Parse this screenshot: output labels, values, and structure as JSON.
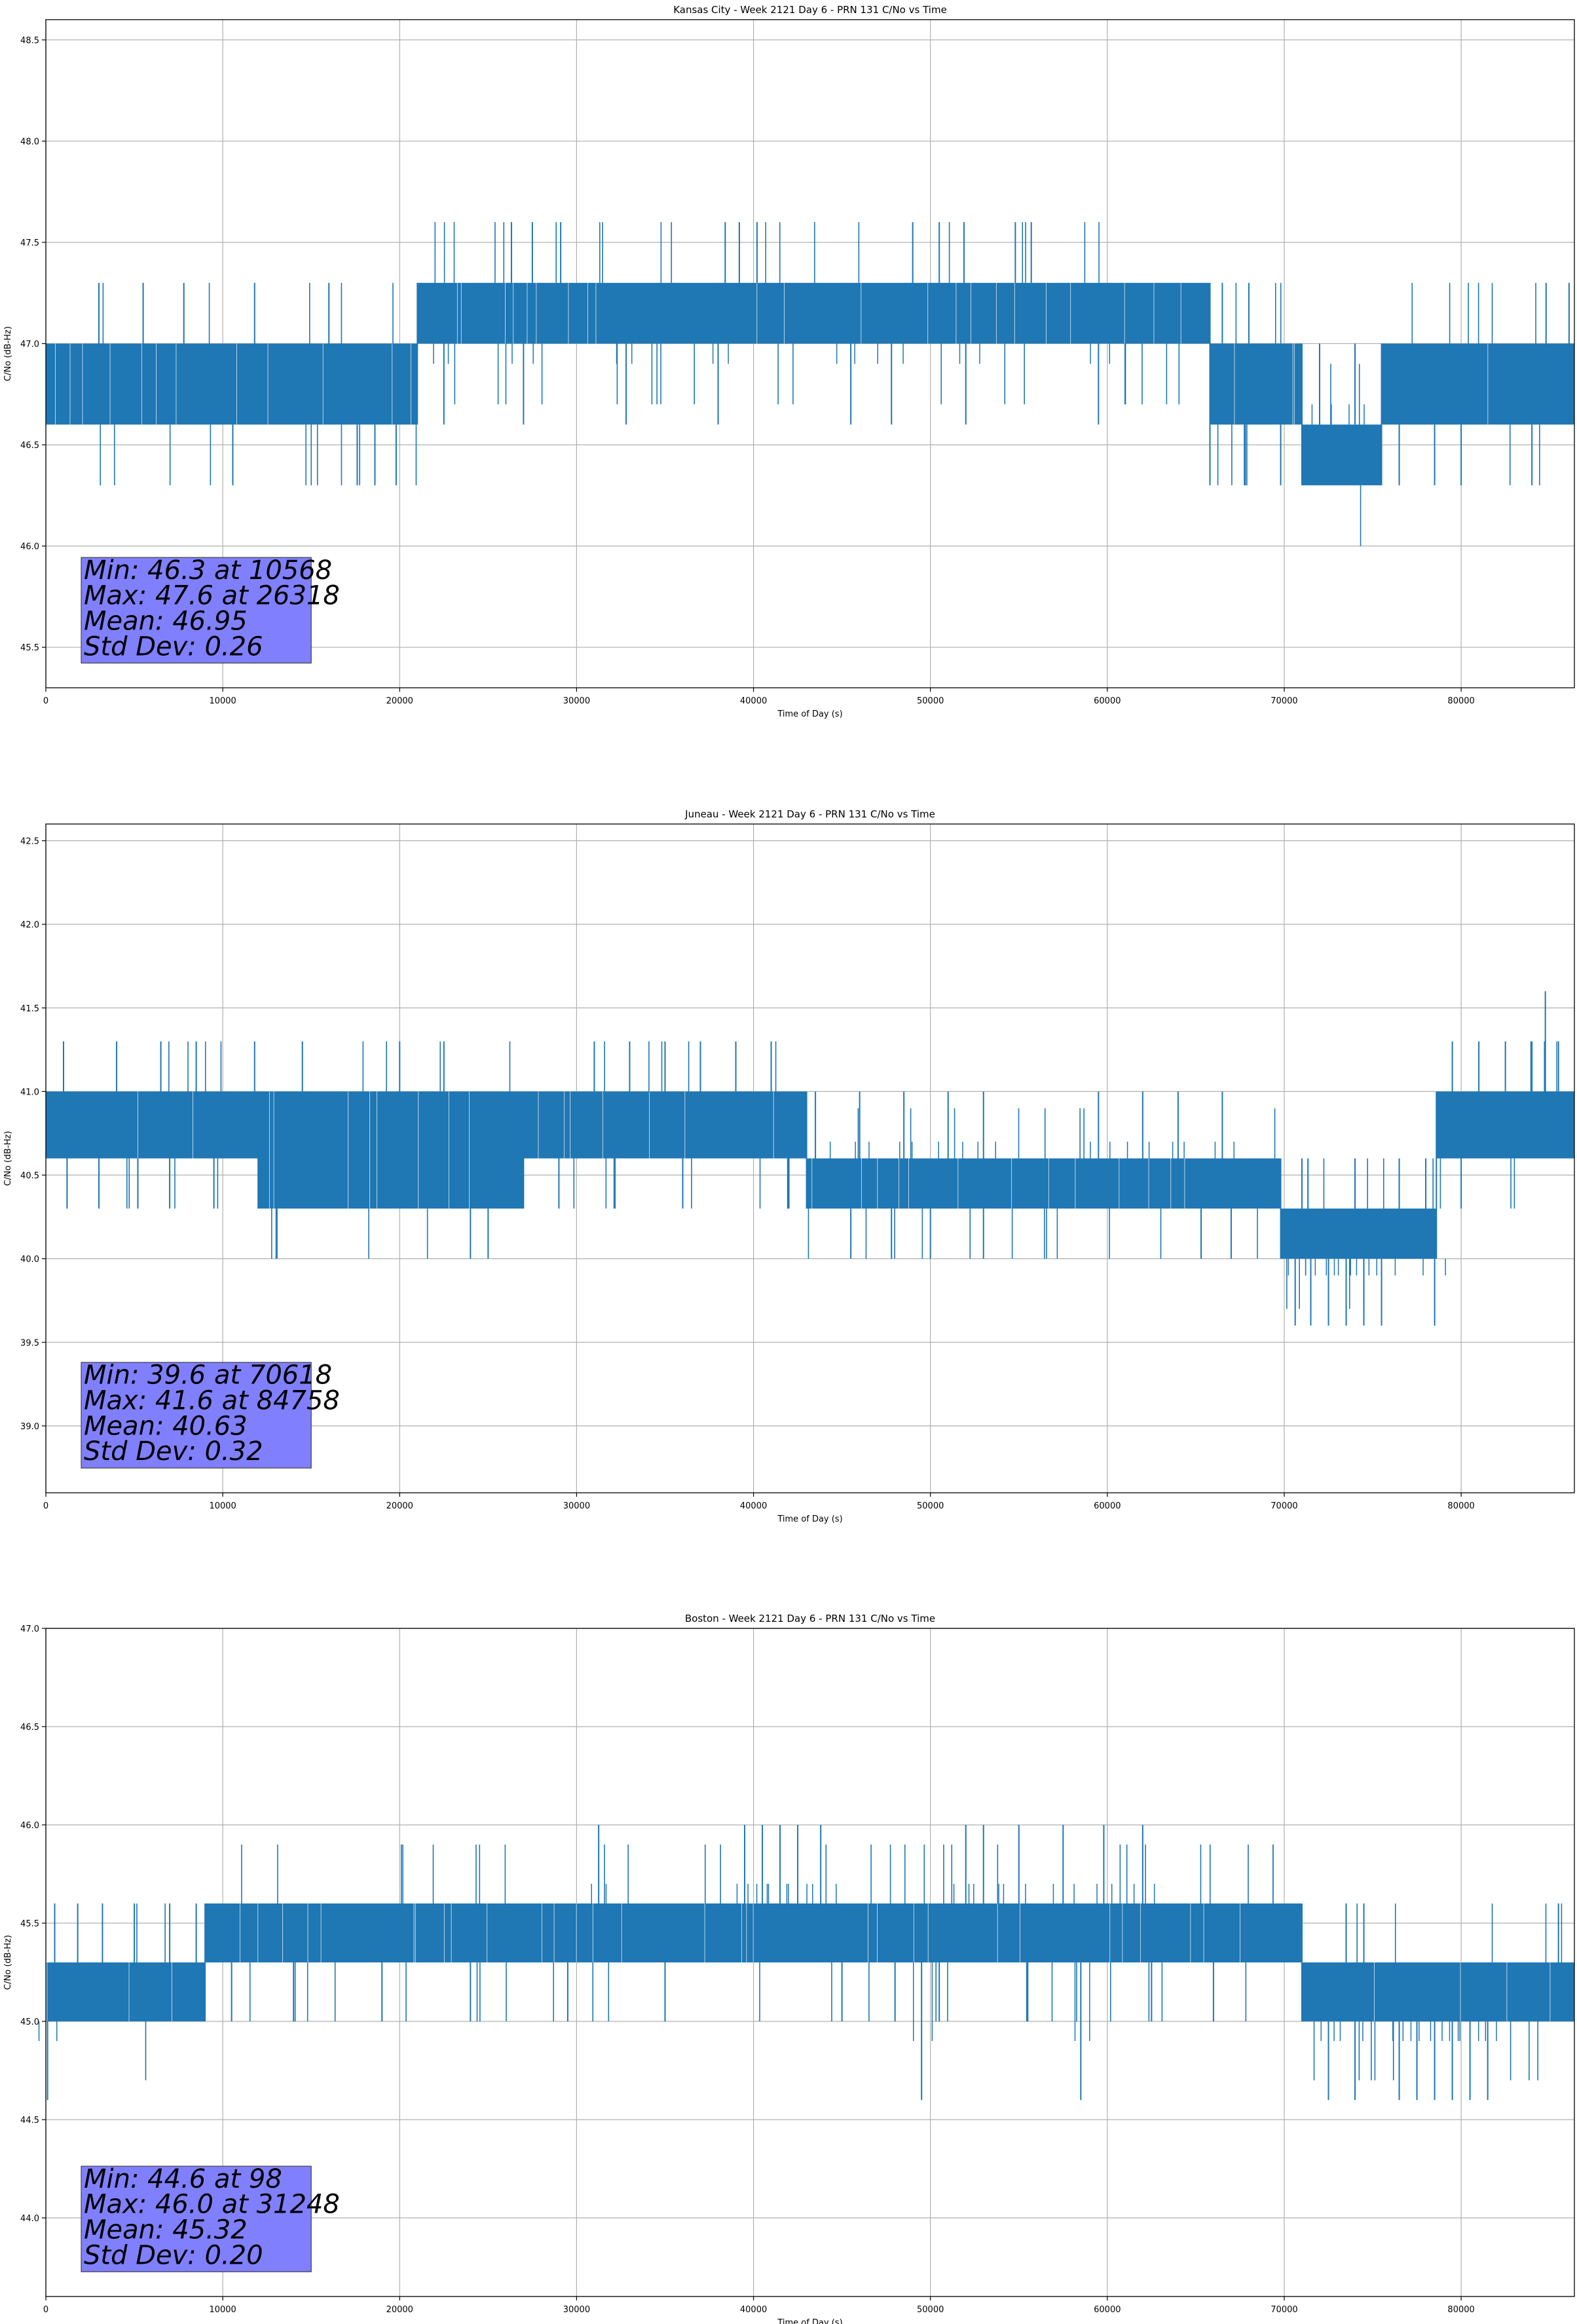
{
  "colors": {
    "series": "#1f77b4",
    "grid": "#b0b0b0",
    "stats_box": "#8080ff",
    "axis": "#000000"
  },
  "chart_data": [
    {
      "type": "line",
      "title": "Kansas City - Week 2121 Day 6 - PRN 131 C/No vs Time",
      "xlabel": "Time of Day (s)",
      "ylabel": "C/No (dB-Hz)",
      "xlim": [
        0,
        86400
      ],
      "ylim": [
        45.3,
        48.6
      ],
      "xticks": [
        0,
        10000,
        20000,
        30000,
        40000,
        50000,
        60000,
        70000,
        80000
      ],
      "yticks": [
        45.5,
        46.0,
        46.5,
        47.0,
        47.5,
        48.0,
        48.5
      ],
      "grid": true,
      "stats": [
        "Min: 46.3 at 10568",
        "Max: 47.6 at 26318",
        "Mean: 46.95",
        "Std Dev: 0.26"
      ],
      "series_segments": [
        {
          "x": [
            0,
            21000
          ],
          "levels": [
            46.6,
            47.0
          ],
          "outliers": [
            [
              10568,
              46.3
            ],
            [
              17600,
              46.3
            ],
            [
              18600,
              46.3
            ],
            [
              19800,
              46.3
            ],
            [
              3000,
              47.3
            ],
            [
              5500,
              47.3
            ],
            [
              7800,
              47.3
            ],
            [
              11800,
              47.3
            ],
            [
              16000,
              47.3
            ]
          ]
        },
        {
          "x": [
            21000,
            65800
          ],
          "levels": [
            47.0,
            47.3
          ],
          "outliers": [
            [
              26318,
              47.6
            ],
            [
              27500,
              47.6
            ],
            [
              29100,
              47.6
            ],
            [
              38400,
              47.6
            ],
            [
              39200,
              47.6
            ],
            [
              40200,
              47.6
            ],
            [
              49000,
              47.6
            ],
            [
              50500,
              47.6
            ],
            [
              51900,
              47.6
            ],
            [
              54800,
              47.6
            ],
            [
              55700,
              47.6
            ],
            [
              22500,
              46.6
            ],
            [
              27000,
              46.6
            ],
            [
              32800,
              46.6
            ],
            [
              38000,
              46.6
            ],
            [
              45500,
              46.6
            ],
            [
              47800,
              46.6
            ],
            [
              52000,
              46.6
            ],
            [
              59500,
              46.6
            ]
          ]
        },
        {
          "x": [
            65800,
            71000
          ],
          "levels": [
            46.6,
            47.0
          ],
          "outliers": [
            [
              65800,
              46.3
            ],
            [
              67800,
              46.3
            ],
            [
              69800,
              46.3
            ],
            [
              66500,
              47.3
            ],
            [
              68000,
              47.3
            ]
          ]
        },
        {
          "x": [
            71000,
            75500
          ],
          "levels": [
            46.3,
            46.6
          ],
          "outliers": [
            [
              72000,
              47.0
            ],
            [
              74000,
              47.0
            ]
          ]
        },
        {
          "x": [
            75500,
            86400
          ],
          "levels": [
            46.6,
            47.0
          ],
          "outliers": [
            [
              76500,
              46.3
            ],
            [
              78500,
              46.3
            ],
            [
              80000,
              46.3
            ],
            [
              84000,
              46.3
            ],
            [
              84800,
              47.3
            ],
            [
              86100,
              47.3
            ]
          ]
        }
      ]
    },
    {
      "type": "line",
      "title": "Juneau - Week 2121 Day 6 - PRN 131 C/No vs Time",
      "xlabel": "Time of Day (s)",
      "ylabel": "C/No (dB-Hz)",
      "xlim": [
        0,
        86400
      ],
      "ylim": [
        38.6,
        42.6
      ],
      "xticks": [
        0,
        10000,
        20000,
        30000,
        40000,
        50000,
        60000,
        70000,
        80000
      ],
      "yticks": [
        39.0,
        39.5,
        40.0,
        40.5,
        41.0,
        41.5,
        42.0,
        42.5
      ],
      "grid": true,
      "stats": [
        "Min: 39.6 at 70618",
        "Max: 41.6 at 84758",
        "Mean: 40.63",
        "Std Dev: 0.32"
      ],
      "series_segments": [
        {
          "x": [
            0,
            12000
          ],
          "levels": [
            40.6,
            41.0
          ],
          "outliers": [
            [
              1200,
              40.3
            ],
            [
              3000,
              40.3
            ],
            [
              5200,
              40.3
            ],
            [
              7000,
              40.3
            ],
            [
              9500,
              40.3
            ],
            [
              1000,
              41.3
            ],
            [
              4000,
              41.3
            ],
            [
              6500,
              41.3
            ],
            [
              8500,
              41.3
            ],
            [
              11800,
              41.3
            ]
          ]
        },
        {
          "x": [
            12000,
            27000
          ],
          "levels": [
            40.3,
            41.0
          ],
          "outliers": [
            [
              24000,
              40.0
            ],
            [
              25000,
              40.0
            ],
            [
              14500,
              41.3
            ],
            [
              20000,
              41.3
            ],
            [
              22500,
              41.3
            ]
          ]
        },
        {
          "x": [
            27000,
            43000
          ],
          "levels": [
            40.6,
            41.0
          ],
          "outliers": [
            [
              31000,
              41.3
            ],
            [
              33000,
              41.3
            ],
            [
              35000,
              41.3
            ],
            [
              37000,
              41.3
            ],
            [
              39000,
              41.3
            ],
            [
              41000,
              41.3
            ],
            [
              29000,
              40.3
            ],
            [
              36000,
              40.3
            ],
            [
              42000,
              40.3
            ]
          ]
        },
        {
          "x": [
            43000,
            69800
          ],
          "levels": [
            40.3,
            40.6
          ],
          "outliers": [
            [
              43500,
              41.0
            ],
            [
              46000,
              41.0
            ],
            [
              48500,
              41.0
            ],
            [
              51000,
              41.0
            ],
            [
              53000,
              41.0
            ],
            [
              59500,
              41.0
            ],
            [
              62000,
              41.0
            ],
            [
              64000,
              41.0
            ],
            [
              66500,
              41.0
            ],
            [
              45500,
              40.0
            ],
            [
              47800,
              40.0
            ],
            [
              50000,
              40.0
            ],
            [
              53000,
              40.0
            ],
            [
              65300,
              40.0
            ],
            [
              67000,
              40.0
            ]
          ]
        },
        {
          "x": [
            69800,
            78600
          ],
          "levels": [
            40.0,
            40.3
          ],
          "outliers": [
            [
              70618,
              39.6
            ],
            [
              71500,
              39.6
            ],
            [
              72500,
              39.6
            ],
            [
              73500,
              39.6
            ],
            [
              74500,
              39.6
            ],
            [
              75500,
              39.6
            ],
            [
              78500,
              39.6
            ],
            [
              71000,
              40.6
            ],
            [
              74000,
              40.6
            ],
            [
              76500,
              40.6
            ],
            [
              78000,
              40.6
            ]
          ]
        },
        {
          "x": [
            78600,
            86400
          ],
          "levels": [
            40.6,
            41.0
          ],
          "outliers": [
            [
              84758,
              41.6
            ],
            [
              79500,
              41.3
            ],
            [
              81000,
              41.3
            ],
            [
              82500,
              41.3
            ],
            [
              84000,
              41.3
            ],
            [
              85500,
              41.3
            ],
            [
              80000,
              40.3
            ]
          ]
        }
      ]
    },
    {
      "type": "line",
      "title": "Boston - Week 2121 Day 6 - PRN 131 C/No vs Time",
      "xlabel": "Time of Day (s)",
      "ylabel": "C/No (dB-Hz)",
      "xlim": [
        0,
        86400
      ],
      "ylim": [
        43.6,
        47.0
      ],
      "xticks": [
        0,
        10000,
        20000,
        30000,
        40000,
        50000,
        60000,
        70000,
        80000
      ],
      "yticks": [
        44.0,
        44.5,
        45.0,
        45.5,
        46.0,
        46.5,
        47.0
      ],
      "grid": true,
      "stats": [
        "Min: 44.6 at 98",
        "Max: 46.0 at 31248",
        "Mean: 45.32",
        "Std Dev: 0.20"
      ],
      "series_segments": [
        {
          "x": [
            0,
            9000
          ],
          "levels": [
            45.0,
            45.3
          ],
          "outliers": [
            [
              98,
              44.6
            ],
            [
              500,
              45.6
            ],
            [
              1800,
              45.6
            ],
            [
              3200,
              45.6
            ],
            [
              5000,
              45.6
            ],
            [
              7000,
              45.6
            ],
            [
              8500,
              45.6
            ]
          ]
        },
        {
          "x": [
            9000,
            71000
          ],
          "levels": [
            45.3,
            45.6
          ],
          "outliers": [
            [
              31248,
              46.0
            ],
            [
              39500,
              46.0
            ],
            [
              40500,
              46.0
            ],
            [
              41500,
              46.0
            ],
            [
              42500,
              46.0
            ],
            [
              43800,
              46.0
            ],
            [
              52000,
              46.0
            ],
            [
              53000,
              46.0
            ],
            [
              55000,
              46.0
            ],
            [
              57500,
              46.0
            ],
            [
              59800,
              46.0
            ],
            [
              62000,
              46.0
            ],
            [
              10500,
              45.0
            ],
            [
              14000,
              45.0
            ],
            [
              19000,
              45.0
            ],
            [
              24000,
              45.0
            ],
            [
              29500,
              45.0
            ],
            [
              35000,
              45.0
            ],
            [
              45000,
              45.0
            ],
            [
              48000,
              45.0
            ],
            [
              50500,
              45.0
            ],
            [
              55500,
              45.0
            ],
            [
              62500,
              45.0
            ],
            [
              66000,
              45.0
            ],
            [
              49500,
              44.6
            ],
            [
              58500,
              44.6
            ]
          ]
        },
        {
          "x": [
            71000,
            86400
          ],
          "levels": [
            45.0,
            45.3
          ],
          "outliers": [
            [
              74500,
              45.6
            ],
            [
              73500,
              45.6
            ],
            [
              85500,
              45.6
            ],
            [
              72500,
              44.6
            ],
            [
              74000,
              44.6
            ],
            [
              76500,
              44.6
            ],
            [
              77500,
              44.6
            ],
            [
              78500,
              44.6
            ],
            [
              79500,
              44.6
            ],
            [
              80500,
              44.6
            ],
            [
              81500,
              44.6
            ]
          ]
        }
      ]
    }
  ]
}
